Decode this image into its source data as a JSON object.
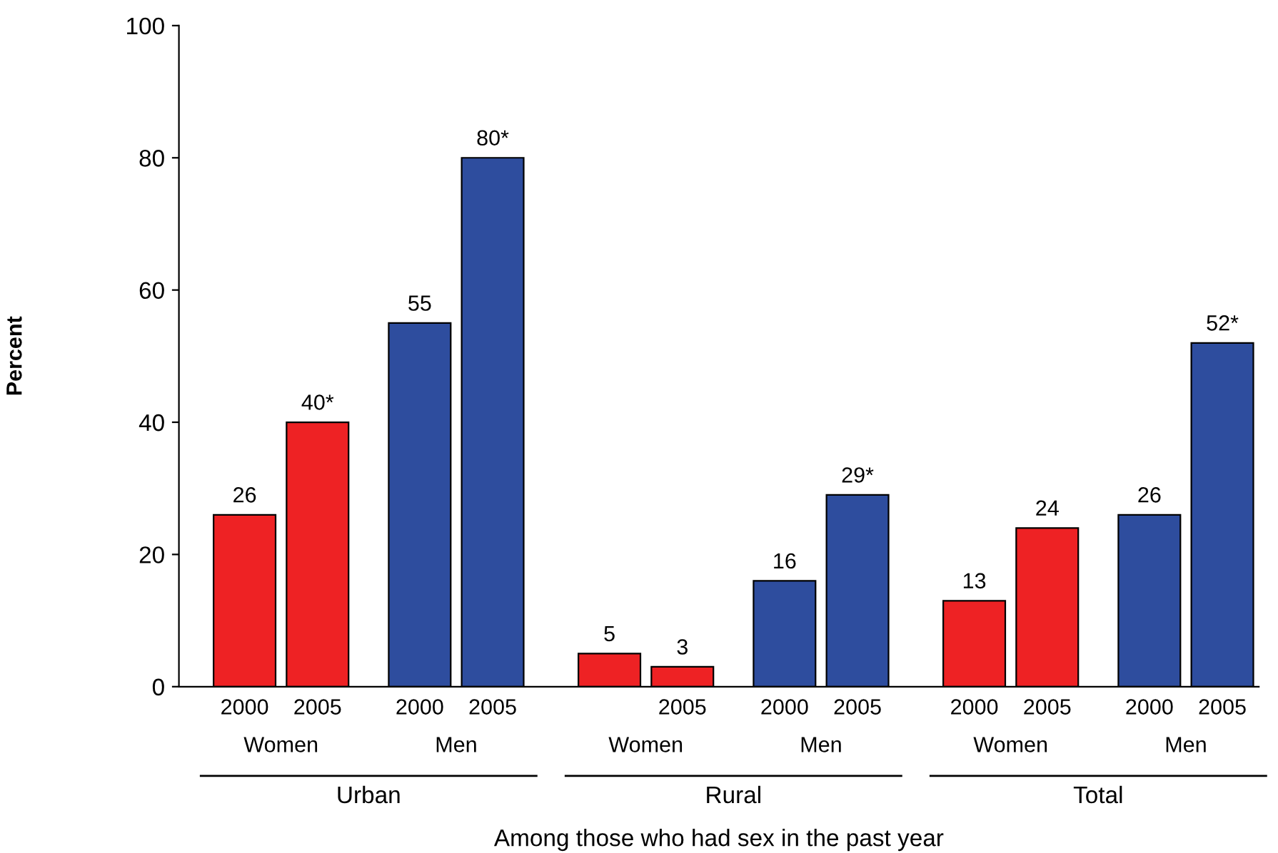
{
  "chart_data": {
    "type": "bar",
    "xlabel": "Among those who had sex in the past year",
    "ylabel": "Percent",
    "categories": [
      "2000",
      "2005",
      "2000",
      "2005",
      null,
      "2005",
      "2000",
      "2005",
      "2000",
      "2005",
      "2000",
      "2005"
    ],
    "values": [
      26,
      40,
      55,
      80,
      5,
      3,
      16,
      29,
      13,
      24,
      26,
      52
    ],
    "colors": [
      "#ee2224",
      "#ee2224",
      "#2e4d9e",
      "#2e4d9e",
      "#ee2224",
      "#ee2224",
      "#2e4d9e",
      "#2e4d9e",
      "#ee2224",
      "#ee2224",
      "#2e4d9e",
      "#2e4d9e"
    ],
    "value_labels": [
      "26",
      "40*",
      "55",
      "80*",
      "5",
      "3",
      "16",
      "29*",
      "13",
      "24",
      "26",
      "52*"
    ],
    "ylim": [
      0,
      100
    ],
    "yticks": [
      0,
      20,
      40,
      60,
      80,
      100
    ],
    "grid": false,
    "annotations": [
      "Women",
      "Men",
      "Women",
      "Men",
      "Women",
      "Men",
      "Urban",
      "Rural",
      "Total"
    ]
  }
}
